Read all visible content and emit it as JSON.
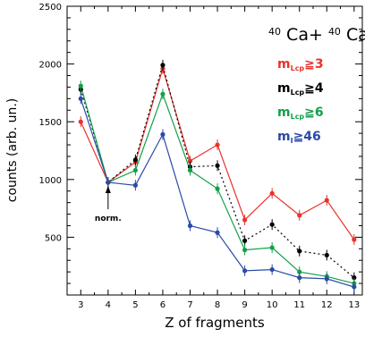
{
  "chart_data": {
    "type": "line",
    "title": {
      "iso1": "40",
      "el1": "Ca+",
      "iso2": "40",
      "el2": "Ca"
    },
    "xlabel": "Z of fragments",
    "ylabel": "counts (arb. un.)",
    "xlim": [
      2.5,
      13.3
    ],
    "ylim": [
      0,
      2500
    ],
    "x_ticks": [
      3,
      4,
      5,
      6,
      7,
      8,
      9,
      10,
      11,
      12,
      13
    ],
    "y_ticks": [
      500,
      1000,
      1500,
      2000,
      2500
    ],
    "grid": false,
    "legend_position": "top-right",
    "annotation": {
      "text": "norm.",
      "x": 4,
      "y": 975
    },
    "x": [
      3,
      4,
      5,
      6,
      7,
      8,
      9,
      10,
      11,
      12,
      13
    ],
    "series": [
      {
        "legend": {
          "main": "m",
          "sub": "Lcp",
          "cond": "≧3"
        },
        "color": "#e8322b",
        "style": "solid",
        "values": [
          1500,
          975,
          1150,
          1960,
          1160,
          1300,
          650,
          880,
          690,
          820,
          480
        ]
      },
      {
        "legend": {
          "main": "m",
          "sub": "Lcp",
          "cond": "≧4"
        },
        "color": "#000000",
        "style": "dotted",
        "values": [
          1780,
          975,
          1170,
          1990,
          1110,
          1120,
          470,
          610,
          380,
          345,
          150
        ]
      },
      {
        "legend": {
          "main": "m",
          "sub": "Lcp",
          "cond": "≧6"
        },
        "color": "#12a04a",
        "style": "solid",
        "values": [
          1810,
          975,
          1080,
          1740,
          1080,
          920,
          390,
          410,
          200,
          160,
          100
        ]
      },
      {
        "legend": {
          "main": "m",
          "sub": "I",
          "cond": "≧46"
        },
        "color": "#2b4aa8",
        "style": "solid",
        "values": [
          1700,
          975,
          950,
          1390,
          600,
          540,
          210,
          220,
          150,
          140,
          70
        ]
      }
    ]
  }
}
